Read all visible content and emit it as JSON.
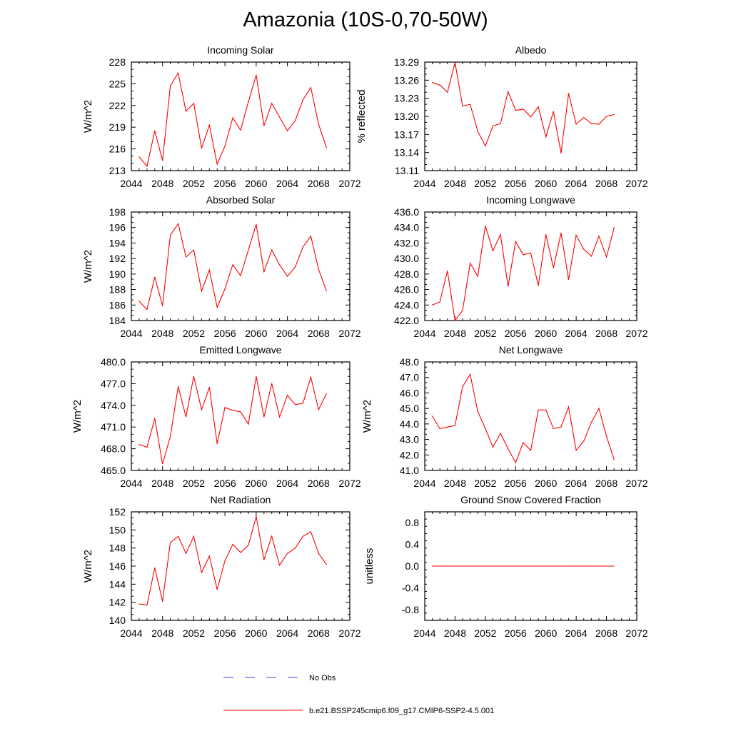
{
  "figure": {
    "title": "Amazonia (10S-0,70-50W)",
    "legend": [
      {
        "label": "No Obs",
        "color": "#4040c0",
        "style": "dashed"
      },
      {
        "label": "b.e21.BSSP245cmip6.f09_g17.CMIP6-SSP2-4.5.001",
        "color": "#ff0000",
        "style": "solid"
      }
    ]
  },
  "chart_data": [
    {
      "type": "line",
      "title": "Incoming Solar",
      "ylabel": "W/m^2",
      "xlabel": "",
      "xlim": [
        2044,
        2072
      ],
      "ylim": [
        213,
        228
      ],
      "xticks": [
        2044,
        2048,
        2052,
        2056,
        2060,
        2064,
        2068,
        2072
      ],
      "xtick_labels": [
        "2044",
        "2048",
        "2052",
        "2056",
        "2060",
        "2064",
        "2068",
        "2072"
      ],
      "yticks": [
        213,
        216,
        219,
        222,
        225,
        228
      ],
      "ytick_labels": [
        "213",
        "216",
        "219",
        "222",
        "225",
        "228"
      ],
      "x": [
        2045,
        2046,
        2047,
        2048,
        2049,
        2050,
        2051,
        2052,
        2053,
        2054,
        2055,
        2056,
        2057,
        2058,
        2059,
        2060,
        2061,
        2062,
        2063,
        2064,
        2065,
        2066,
        2067,
        2068,
        2069
      ],
      "series": [
        {
          "name": "b.e21.BSSP245cmip6.f09_g17.CMIP6-SSP2-4.5.001",
          "color": "#ff0000",
          "values": [
            214.9,
            213.6,
            218.5,
            214.4,
            224.7,
            226.5,
            221.2,
            222.3,
            216.1,
            219.3,
            213.9,
            216.4,
            220.3,
            218.6,
            222.5,
            226.2,
            219.2,
            222.3,
            220.4,
            218.5,
            219.9,
            222.8,
            224.5,
            219.4,
            216.2
          ]
        }
      ]
    },
    {
      "type": "line",
      "title": "Albedo",
      "ylabel": "% reflected",
      "xlabel": "",
      "xlim": [
        2044,
        2072
      ],
      "ylim": [
        13.11,
        13.29
      ],
      "xticks": [
        2044,
        2048,
        2052,
        2056,
        2060,
        2064,
        2068,
        2072
      ],
      "xtick_labels": [
        "2044",
        "2048",
        "2052",
        "2056",
        "2060",
        "2064",
        "2068",
        "2072"
      ],
      "yticks": [
        13.11,
        13.14,
        13.17,
        13.2,
        13.23,
        13.26,
        13.29
      ],
      "ytick_labels": [
        "13.11",
        "13.14",
        "13.17",
        "13.20",
        "13.23",
        "13.26",
        "13.29"
      ],
      "x": [
        2045,
        2046,
        2047,
        2048,
        2049,
        2050,
        2051,
        2052,
        2053,
        2054,
        2055,
        2056,
        2057,
        2058,
        2059,
        2060,
        2061,
        2062,
        2063,
        2064,
        2065,
        2066,
        2067,
        2068,
        2069
      ],
      "series": [
        {
          "name": "b.e21.BSSP245cmip6.f09_g17.CMIP6-SSP2-4.5.001",
          "color": "#ff0000",
          "values": [
            13.256,
            13.252,
            13.24,
            13.289,
            13.217,
            13.22,
            13.175,
            13.151,
            13.184,
            13.188,
            13.241,
            13.21,
            13.212,
            13.199,
            13.216,
            13.166,
            13.208,
            13.139,
            13.238,
            13.187,
            13.198,
            13.188,
            13.187,
            13.2,
            13.203
          ]
        }
      ]
    },
    {
      "type": "line",
      "title": "Absorbed Solar",
      "ylabel": "W/m^2",
      "xlabel": "",
      "xlim": [
        2044,
        2072
      ],
      "ylim": [
        184,
        198
      ],
      "xticks": [
        2044,
        2048,
        2052,
        2056,
        2060,
        2064,
        2068,
        2072
      ],
      "xtick_labels": [
        "2044",
        "2048",
        "2052",
        "2056",
        "2060",
        "2064",
        "2068",
        "2072"
      ],
      "yticks": [
        184,
        186,
        188,
        190,
        192,
        194,
        196,
        198
      ],
      "ytick_labels": [
        "184",
        "186",
        "188",
        "190",
        "192",
        "194",
        "196",
        "198"
      ],
      "x": [
        2045,
        2046,
        2047,
        2048,
        2049,
        2050,
        2051,
        2052,
        2053,
        2054,
        2055,
        2056,
        2057,
        2058,
        2059,
        2060,
        2061,
        2062,
        2063,
        2064,
        2065,
        2066,
        2067,
        2068,
        2069
      ],
      "series": [
        {
          "name": "b.e21.BSSP245cmip6.f09_g17.CMIP6-SSP2-4.5.001",
          "color": "#ff0000",
          "values": [
            186.5,
            185.4,
            189.6,
            185.9,
            195.0,
            196.5,
            192.2,
            193.1,
            187.8,
            190.5,
            185.7,
            188.1,
            191.2,
            189.8,
            193.1,
            196.4,
            190.3,
            193.1,
            191.2,
            189.7,
            190.9,
            193.5,
            194.9,
            190.6,
            187.8
          ]
        }
      ]
    },
    {
      "type": "line",
      "title": "Incoming Longwave",
      "ylabel": "",
      "xlabel": "",
      "xlim": [
        2044,
        2072
      ],
      "ylim": [
        422.0,
        436.0
      ],
      "xticks": [
        2044,
        2048,
        2052,
        2056,
        2060,
        2064,
        2068,
        2072
      ],
      "xtick_labels": [
        "2044",
        "2048",
        "2052",
        "2056",
        "2060",
        "2064",
        "2068",
        "2072"
      ],
      "yticks": [
        422,
        424,
        426,
        428,
        430,
        432,
        434,
        436
      ],
      "ytick_labels": [
        "422.0",
        "424.0",
        "426.0",
        "428.0",
        "430.0",
        "432.0",
        "434.0",
        "436.0"
      ],
      "x": [
        2045,
        2046,
        2047,
        2048,
        2049,
        2050,
        2051,
        2052,
        2053,
        2054,
        2055,
        2056,
        2057,
        2058,
        2059,
        2060,
        2061,
        2062,
        2063,
        2064,
        2065,
        2066,
        2067,
        2068,
        2069
      ],
      "series": [
        {
          "name": "b.e21.BSSP245cmip6.f09_g17.CMIP6-SSP2-4.5.001",
          "color": "#ff0000",
          "values": [
            424.0,
            424.4,
            428.4,
            422.0,
            423.3,
            429.4,
            427.7,
            434.2,
            431.0,
            433.1,
            426.4,
            432.2,
            430.5,
            430.7,
            426.5,
            433.1,
            428.8,
            433.3,
            427.3,
            433.0,
            431.2,
            430.3,
            432.9,
            430.2,
            434.0
          ]
        }
      ]
    },
    {
      "type": "line",
      "title": "Emitted Longwave",
      "ylabel": "W/m^2",
      "xlabel": "",
      "xlim": [
        2044,
        2072
      ],
      "ylim": [
        465.0,
        480.0
      ],
      "xticks": [
        2044,
        2048,
        2052,
        2056,
        2060,
        2064,
        2068,
        2072
      ],
      "xtick_labels": [
        "2044",
        "2048",
        "2052",
        "2056",
        "2060",
        "2064",
        "2068",
        "2072"
      ],
      "yticks": [
        465,
        468,
        471,
        474,
        477,
        480
      ],
      "ytick_labels": [
        "465.0",
        "468.0",
        "471.0",
        "474.0",
        "477.0",
        "480.0"
      ],
      "x": [
        2045,
        2046,
        2047,
        2048,
        2049,
        2050,
        2051,
        2052,
        2053,
        2054,
        2055,
        2056,
        2057,
        2058,
        2059,
        2060,
        2061,
        2062,
        2063,
        2064,
        2065,
        2066,
        2067,
        2068,
        2069
      ],
      "series": [
        {
          "name": "b.e21.BSSP245cmip6.f09_g17.CMIP6-SSP2-4.5.001",
          "color": "#ff0000",
          "values": [
            468.6,
            468.2,
            472.2,
            465.9,
            469.7,
            476.6,
            472.4,
            478.0,
            473.4,
            476.5,
            468.7,
            473.7,
            473.3,
            473.1,
            471.4,
            478.0,
            472.4,
            477.0,
            472.4,
            475.4,
            474.1,
            474.3,
            477.9,
            473.4,
            475.6
          ]
        }
      ]
    },
    {
      "type": "line",
      "title": "Net Longwave",
      "ylabel": "W/m^2",
      "xlabel": "",
      "xlim": [
        2044,
        2072
      ],
      "ylim": [
        41.0,
        48.0
      ],
      "xticks": [
        2044,
        2048,
        2052,
        2056,
        2060,
        2064,
        2068,
        2072
      ],
      "xtick_labels": [
        "2044",
        "2048",
        "2052",
        "2056",
        "2060",
        "2064",
        "2068",
        "2072"
      ],
      "yticks": [
        41,
        42,
        43,
        44,
        45,
        46,
        47,
        48
      ],
      "ytick_labels": [
        "41.0",
        "42.0",
        "43.0",
        "44.0",
        "45.0",
        "46.0",
        "47.0",
        "48.0"
      ],
      "x": [
        2045,
        2046,
        2047,
        2048,
        2049,
        2050,
        2051,
        2052,
        2053,
        2054,
        2055,
        2056,
        2057,
        2058,
        2059,
        2060,
        2061,
        2062,
        2063,
        2064,
        2065,
        2066,
        2067,
        2068,
        2069
      ],
      "series": [
        {
          "name": "b.e21.BSSP245cmip6.f09_g17.CMIP6-SSP2-4.5.001",
          "color": "#ff0000",
          "values": [
            44.5,
            43.7,
            43.8,
            43.9,
            46.4,
            47.2,
            44.8,
            43.7,
            42.5,
            43.4,
            42.4,
            41.5,
            42.8,
            42.3,
            44.9,
            44.9,
            43.7,
            43.8,
            45.1,
            42.3,
            42.9,
            44.1,
            45.0,
            43.2,
            41.7
          ]
        }
      ]
    },
    {
      "type": "line",
      "title": "Net Radiation",
      "ylabel": "W/m^2",
      "xlabel": "",
      "xlim": [
        2044,
        2072
      ],
      "ylim": [
        140,
        152
      ],
      "xticks": [
        2044,
        2048,
        2052,
        2056,
        2060,
        2064,
        2068,
        2072
      ],
      "xtick_labels": [
        "2044",
        "2048",
        "2052",
        "2056",
        "2060",
        "2064",
        "2068",
        "2072"
      ],
      "yticks": [
        140,
        142,
        144,
        146,
        148,
        150,
        152
      ],
      "ytick_labels": [
        "140",
        "142",
        "144",
        "146",
        "148",
        "150",
        "152"
      ],
      "x": [
        2045,
        2046,
        2047,
        2048,
        2049,
        2050,
        2051,
        2052,
        2053,
        2054,
        2055,
        2056,
        2057,
        2058,
        2059,
        2060,
        2061,
        2062,
        2063,
        2064,
        2065,
        2066,
        2067,
        2068,
        2069
      ],
      "series": [
        {
          "name": "b.e21.BSSP245cmip6.f09_g17.CMIP6-SSP2-4.5.001",
          "color": "#ff0000",
          "values": [
            141.8,
            141.7,
            145.8,
            142.1,
            148.6,
            149.3,
            147.4,
            149.3,
            145.3,
            147.1,
            143.4,
            146.6,
            148.4,
            147.5,
            148.3,
            151.5,
            146.7,
            149.3,
            146.1,
            147.4,
            148.0,
            149.3,
            149.8,
            147.4,
            146.2
          ]
        }
      ]
    },
    {
      "type": "line",
      "title": "Ground Snow Covered Fraction",
      "ylabel": "unitless",
      "xlabel": "",
      "xlim": [
        2044,
        2072
      ],
      "ylim": [
        -1.0,
        1.0
      ],
      "xticks": [
        2044,
        2048,
        2052,
        2056,
        2060,
        2064,
        2068,
        2072
      ],
      "xtick_labels": [
        "2044",
        "2048",
        "2052",
        "2056",
        "2060",
        "2064",
        "2068",
        "2072"
      ],
      "yticks": [
        -0.8,
        -0.4,
        0.0,
        0.4,
        0.8
      ],
      "ytick_labels": [
        "-0.8",
        "-0.4",
        "0.0",
        "0.4",
        "0.8"
      ],
      "x": [
        2045,
        2046,
        2047,
        2048,
        2049,
        2050,
        2051,
        2052,
        2053,
        2054,
        2055,
        2056,
        2057,
        2058,
        2059,
        2060,
        2061,
        2062,
        2063,
        2064,
        2065,
        2066,
        2067,
        2068,
        2069
      ],
      "series": [
        {
          "name": "b.e21.BSSP245cmip6.f09_g17.CMIP6-SSP2-4.5.001",
          "color": "#ff0000",
          "values": [
            0,
            0,
            0,
            0,
            0,
            0,
            0,
            0,
            0,
            0,
            0,
            0,
            0,
            0,
            0,
            0,
            0,
            0,
            0,
            0,
            0,
            0,
            0,
            0,
            0
          ]
        }
      ]
    }
  ]
}
